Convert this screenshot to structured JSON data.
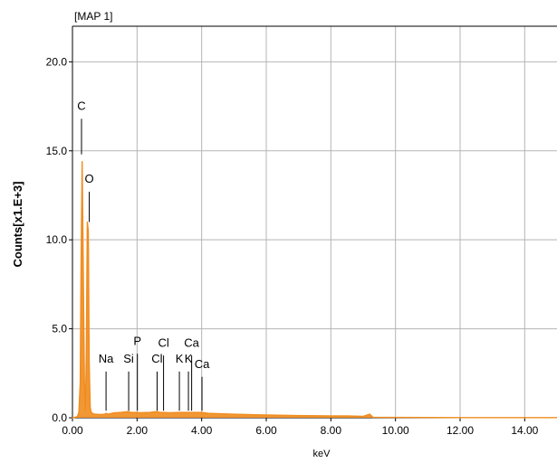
{
  "chart_data": {
    "type": "line",
    "title": "[MAP 1]",
    "xlabel": "keV",
    "ylabel": "Counts[x1.E+3]",
    "xlim": [
      0,
      15
    ],
    "ylim": [
      0,
      22
    ],
    "x_ticks": [
      "0.00",
      "2.00",
      "4.00",
      "6.00",
      "8.00",
      "10.00",
      "12.00",
      "14.00"
    ],
    "y_ticks": [
      "0.0",
      "5.0",
      "10.0",
      "15.0",
      "20.0"
    ],
    "grid": true,
    "series_color": "#F08C1E",
    "series": [
      {
        "x": [
          0.0,
          0.15,
          0.2,
          0.24,
          0.27,
          0.3,
          0.33,
          0.37,
          0.4,
          0.43,
          0.46,
          0.49,
          0.52,
          0.55,
          0.58,
          0.62,
          0.7,
          0.9,
          1.0,
          1.04,
          1.1,
          1.3,
          1.5,
          1.74,
          1.8,
          2.01,
          2.1,
          2.4,
          2.62,
          2.7,
          2.82,
          3.0,
          3.31,
          3.59,
          3.69,
          4.01,
          4.2,
          5.0,
          6.0,
          7.0,
          8.0,
          8.5,
          9.0,
          9.2,
          9.3,
          10.0,
          12.0,
          15.0
        ],
        "values": [
          0.0,
          0.05,
          0.3,
          2.0,
          9.0,
          14.4,
          9.0,
          2.0,
          0.5,
          3.5,
          11.0,
          10.5,
          3.0,
          0.6,
          0.3,
          0.25,
          0.2,
          0.18,
          0.2,
          0.25,
          0.2,
          0.28,
          0.3,
          0.35,
          0.3,
          0.3,
          0.28,
          0.3,
          0.35,
          0.3,
          0.3,
          0.28,
          0.3,
          0.3,
          0.3,
          0.3,
          0.25,
          0.2,
          0.15,
          0.12,
          0.1,
          0.1,
          0.08,
          0.2,
          0.03,
          0.02,
          0.01,
          0.01
        ]
      }
    ],
    "annotations": [
      {
        "text": "C",
        "x": 0.28,
        "line_top": 16.8,
        "line_bottom": 14.8,
        "label_y": 17.3
      },
      {
        "text": "O",
        "x": 0.52,
        "line_top": 12.7,
        "line_bottom": 11.0,
        "label_y": 13.2
      },
      {
        "text": "Na",
        "x": 1.04,
        "line_top": 2.6,
        "line_bottom": 0.4,
        "label_y": 3.1
      },
      {
        "text": "Si",
        "x": 1.74,
        "line_top": 2.6,
        "line_bottom": 0.4,
        "label_y": 3.1
      },
      {
        "text": "P",
        "x": 2.01,
        "line_top": 3.6,
        "line_bottom": 0.4,
        "label_y": 4.1
      },
      {
        "text": "Cl",
        "x": 2.62,
        "line_top": 2.6,
        "line_bottom": 0.4,
        "label_y": 3.1
      },
      {
        "text": "Cl",
        "x": 2.82,
        "line_top": 3.5,
        "line_bottom": 0.4,
        "label_y": 4.0
      },
      {
        "text": "K",
        "x": 3.31,
        "line_top": 2.6,
        "line_bottom": 0.4,
        "label_y": 3.1
      },
      {
        "text": "K",
        "x": 3.59,
        "line_top": 2.6,
        "line_bottom": 0.4,
        "label_y": 3.1
      },
      {
        "text": "Ca",
        "x": 3.69,
        "line_top": 3.5,
        "line_bottom": 0.4,
        "label_y": 4.0
      },
      {
        "text": "Ca",
        "x": 4.01,
        "line_top": 2.3,
        "line_bottom": 0.4,
        "label_y": 2.8
      }
    ]
  }
}
